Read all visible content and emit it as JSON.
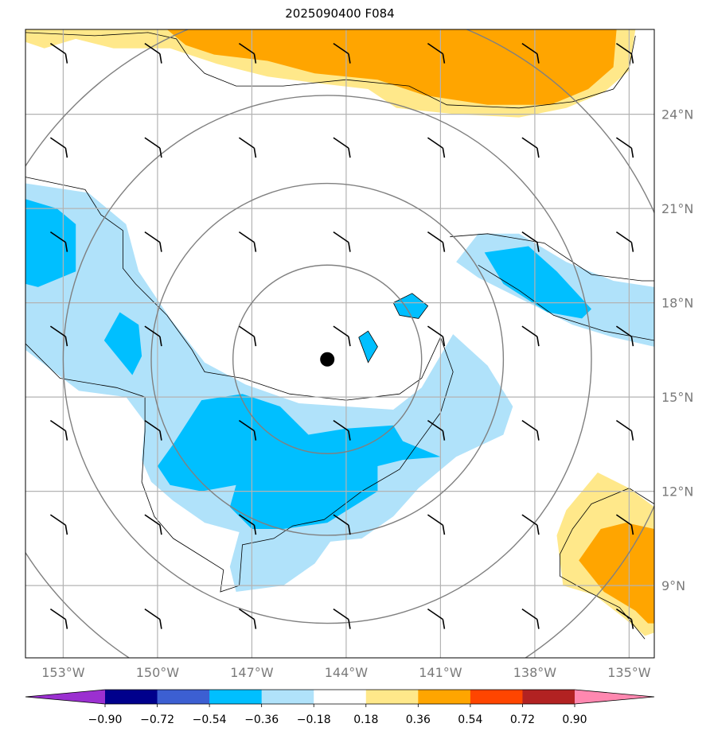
{
  "title": "2025090400 F084",
  "chart_data": {
    "type": "map",
    "title": "2025090400 F084",
    "lon_range": [
      -154.2,
      -134.2
    ],
    "lat_range": [
      6.7,
      26.7
    ],
    "lon_ticks": [
      -153,
      -150,
      -147,
      -144,
      -141,
      -138,
      -135
    ],
    "lon_labels": [
      "153°W",
      "150°W",
      "147°W",
      "144°W",
      "141°W",
      "138°W",
      "135°W"
    ],
    "lat_ticks": [
      9,
      12,
      15,
      18,
      21,
      24
    ],
    "lat_labels": [
      "9°N",
      "12°N",
      "15°N",
      "18°N",
      "21°N",
      "24°N"
    ],
    "center_marker": {
      "lon": -144.6,
      "lat": 16.2
    },
    "range_rings_deg": [
      3,
      5.6,
      8.4,
      11.4
    ],
    "colorbar": {
      "levels": [
        "−0.90",
        "−0.72",
        "−0.54",
        "−0.36",
        "−0.18",
        "0.18",
        "0.36",
        "0.54",
        "0.72",
        "0.90"
      ],
      "colors": [
        "#9b30d0",
        "#00008c",
        "#3c5fd2",
        "#00bfff",
        "#b0e2fa",
        "#ffffff",
        "#ffe88a",
        "#ffa500",
        "#ff4500",
        "#b22222",
        "#ff88b0"
      ]
    },
    "shaded_regions": [
      {
        "name": "light-blue-band",
        "color": "#b0e2fa",
        "lonlat": [
          [
            -154.2,
            21.8
          ],
          [
            -152.2,
            21.5
          ],
          [
            -151,
            20.5
          ],
          [
            -150.6,
            19
          ],
          [
            -149.6,
            17.5
          ],
          [
            -148.5,
            16.1
          ],
          [
            -147.2,
            15.4
          ],
          [
            -145.5,
            14.8
          ],
          [
            -144,
            14.7
          ],
          [
            -142.5,
            14.6
          ],
          [
            -141.6,
            15.3
          ],
          [
            -140.6,
            17
          ],
          [
            -139.5,
            16
          ],
          [
            -138.7,
            14.7
          ],
          [
            -139,
            13.8
          ],
          [
            -140.5,
            13.1
          ],
          [
            -141.7,
            12.1
          ],
          [
            -142.5,
            11.2
          ],
          [
            -143.5,
            10.5
          ],
          [
            -144.5,
            10.4
          ],
          [
            -145,
            9.7
          ],
          [
            -146,
            9
          ],
          [
            -147.5,
            8.8
          ],
          [
            -147.7,
            9.6
          ],
          [
            -147.4,
            10.7
          ],
          [
            -148.5,
            11
          ],
          [
            -149.5,
            11.7
          ],
          [
            -150.2,
            12.3
          ],
          [
            -150.5,
            13
          ],
          [
            -150.4,
            14.2
          ],
          [
            -151,
            15
          ],
          [
            -152.5,
            15.2
          ],
          [
            -154.2,
            16.5
          ]
        ]
      },
      {
        "name": "blue-core-west",
        "color": "#00bfff",
        "lonlat": [
          [
            -154.2,
            21.3
          ],
          [
            -153.2,
            21
          ],
          [
            -152.6,
            20.5
          ],
          [
            -152.6,
            19
          ],
          [
            -153.8,
            18.5
          ],
          [
            -154.2,
            18.6
          ]
        ]
      },
      {
        "name": "blue-core-small",
        "color": "#00bfff",
        "lonlat": [
          [
            -151.2,
            17.7
          ],
          [
            -150.6,
            17.3
          ],
          [
            -150.5,
            16.3
          ],
          [
            -150.8,
            15.7
          ],
          [
            -151.7,
            16.8
          ]
        ]
      },
      {
        "name": "blue-core-south",
        "color": "#00bfff",
        "lonlat": [
          [
            -149.5,
            13.5
          ],
          [
            -148.6,
            14.9
          ],
          [
            -147.3,
            15.1
          ],
          [
            -146.1,
            14.7
          ],
          [
            -145.2,
            13.8
          ],
          [
            -144,
            14
          ],
          [
            -142.5,
            14.1
          ],
          [
            -142.2,
            13.6
          ],
          [
            -141,
            13.1
          ],
          [
            -142.2,
            13
          ],
          [
            -143,
            12.8
          ],
          [
            -143,
            12
          ],
          [
            -143.8,
            11.5
          ],
          [
            -144.6,
            11
          ],
          [
            -146,
            10.8
          ],
          [
            -147,
            10.8
          ],
          [
            -147.7,
            11.5
          ],
          [
            -147.5,
            12.2
          ],
          [
            -148.6,
            12
          ],
          [
            -149.6,
            12.2
          ],
          [
            -150,
            12.8
          ]
        ]
      },
      {
        "name": "light-blue-east",
        "color": "#b0e2fa",
        "lonlat": [
          [
            -140.5,
            19.3
          ],
          [
            -139.8,
            20.2
          ],
          [
            -138.5,
            20.2
          ],
          [
            -137,
            19.3
          ],
          [
            -135.5,
            18.7
          ],
          [
            -134.2,
            18.5
          ],
          [
            -134.2,
            16.6
          ],
          [
            -135.5,
            16.9
          ],
          [
            -136.8,
            17.3
          ],
          [
            -138.2,
            18
          ],
          [
            -139.8,
            18.8
          ]
        ]
      },
      {
        "name": "blue-core-east",
        "color": "#00bfff",
        "lonlat": [
          [
            -139.6,
            19.6
          ],
          [
            -138.2,
            19.8
          ],
          [
            -137.3,
            19
          ],
          [
            -136.2,
            17.8
          ],
          [
            -136.5,
            17.5
          ],
          [
            -137.6,
            17.7
          ],
          [
            -139,
            18.6
          ]
        ]
      },
      {
        "name": "blue-islet-1",
        "color": "#00bfff",
        "lonlat": [
          [
            -142.5,
            18.0
          ],
          [
            -141.9,
            18.3
          ],
          [
            -141.4,
            17.9
          ],
          [
            -141.7,
            17.5
          ],
          [
            -142.3,
            17.6
          ]
        ]
      },
      {
        "name": "blue-islet-2",
        "color": "#00bfff",
        "lonlat": [
          [
            -143.6,
            16.9
          ],
          [
            -143.3,
            17.1
          ],
          [
            -143,
            16.6
          ],
          [
            -143.3,
            16.1
          ]
        ]
      },
      {
        "name": "yellow-north",
        "color": "#ffe88a",
        "lonlat": [
          [
            -154.2,
            26.7
          ],
          [
            -134.8,
            26.7
          ],
          [
            -135,
            25.4
          ],
          [
            -135.8,
            24.7
          ],
          [
            -137,
            24.2
          ],
          [
            -138.5,
            23.9
          ],
          [
            -140.5,
            24
          ],
          [
            -142.4,
            24.2
          ],
          [
            -143.3,
            24.8
          ],
          [
            -145,
            25
          ],
          [
            -146.5,
            25.2
          ],
          [
            -148.1,
            25.6
          ],
          [
            -149.6,
            26.1
          ],
          [
            -151.4,
            26.1
          ],
          [
            -152.6,
            26.4
          ],
          [
            -153.6,
            26.1
          ],
          [
            -154.2,
            26.3
          ]
        ]
      },
      {
        "name": "orange-north",
        "color": "#ffa500",
        "lonlat": [
          [
            -149.7,
            26.7
          ],
          [
            -135.4,
            26.7
          ],
          [
            -135.5,
            25.5
          ],
          [
            -136.3,
            24.8
          ],
          [
            -137.5,
            24.3
          ],
          [
            -139.5,
            24.3
          ],
          [
            -141.5,
            24.6
          ],
          [
            -143,
            25.1
          ],
          [
            -145,
            25.3
          ],
          [
            -146.5,
            25.7
          ],
          [
            -148.2,
            25.9
          ],
          [
            -149.1,
            26.2
          ]
        ]
      },
      {
        "name": "yellow-southeast",
        "color": "#ffe88a",
        "lonlat": [
          [
            -134.2,
            11.5
          ],
          [
            -135,
            12.1
          ],
          [
            -136,
            12.6
          ],
          [
            -137,
            11.4
          ],
          [
            -137.3,
            10.6
          ],
          [
            -137.1,
            9
          ],
          [
            -136.1,
            8.7
          ],
          [
            -135.2,
            8
          ],
          [
            -134.5,
            7.4
          ],
          [
            -134.2,
            7.5
          ]
        ]
      },
      {
        "name": "orange-southeast",
        "color": "#ffa500",
        "lonlat": [
          [
            -134.2,
            10.8
          ],
          [
            -135.1,
            11
          ],
          [
            -135.9,
            10.8
          ],
          [
            -136.6,
            9.8
          ],
          [
            -135.8,
            8.8
          ],
          [
            -134.8,
            8.2
          ],
          [
            -134.4,
            7.8
          ],
          [
            -134.2,
            7.8
          ]
        ]
      }
    ],
    "contour_lines": [
      {
        "name": "contour-west",
        "lonlat": [
          [
            -154.2,
            22
          ],
          [
            -152.3,
            21.6
          ],
          [
            -151.8,
            20.8
          ],
          [
            -151.1,
            20.3
          ],
          [
            -151.1,
            19.1
          ],
          [
            -150.7,
            18.6
          ],
          [
            -149.7,
            17.6
          ],
          [
            -148.9,
            16.5
          ],
          [
            -148.5,
            15.8
          ],
          [
            -147.3,
            15.6
          ],
          [
            -145.8,
            15.1
          ],
          [
            -144,
            14.9
          ],
          [
            -142.3,
            15.1
          ],
          [
            -141.6,
            15.6
          ],
          [
            -141,
            16.9
          ],
          [
            -140.6,
            15.8
          ],
          [
            -141,
            14.5
          ],
          [
            -141.8,
            13.4
          ],
          [
            -142.3,
            12.7
          ],
          [
            -143.5,
            12
          ],
          [
            -144.7,
            11.1
          ],
          [
            -145.7,
            10.9
          ],
          [
            -146.3,
            10.5
          ],
          [
            -147.3,
            10.3
          ],
          [
            -147.4,
            9
          ],
          [
            -148,
            8.8
          ],
          [
            -147.9,
            9.5
          ],
          [
            -149.5,
            10.5
          ],
          [
            -150.1,
            11.2
          ],
          [
            -150.5,
            12.3
          ],
          [
            -150.4,
            13.9
          ],
          [
            -150.4,
            15
          ],
          [
            -151.3,
            15.3
          ],
          [
            -153.1,
            15.6
          ],
          [
            -154.2,
            16.7
          ]
        ]
      },
      {
        "name": "contour-east",
        "lonlat": [
          [
            -140.7,
            20.1
          ],
          [
            -139.5,
            20.2
          ],
          [
            -137.7,
            19.9
          ],
          [
            -136.2,
            18.9
          ],
          [
            -134.6,
            18.7
          ],
          [
            -134.2,
            18.7
          ],
          [
            -134.2,
            16.8
          ],
          [
            -135.8,
            17.1
          ],
          [
            -137.4,
            17.6
          ],
          [
            -138.5,
            18.4
          ],
          [
            -139.8,
            19.2
          ]
        ]
      },
      {
        "name": "contour-north",
        "lonlat": [
          [
            -154.2,
            26.6
          ],
          [
            -152,
            26.5
          ],
          [
            -150.3,
            26.6
          ],
          [
            -149.4,
            26.4
          ],
          [
            -149,
            25.8
          ],
          [
            -148.5,
            25.3
          ],
          [
            -147.5,
            24.9
          ],
          [
            -146,
            24.9
          ],
          [
            -144,
            25.1
          ],
          [
            -142,
            24.9
          ],
          [
            -140.8,
            24.3
          ],
          [
            -138.5,
            24.2
          ],
          [
            -136.8,
            24.4
          ],
          [
            -135.5,
            24.8
          ],
          [
            -135,
            25.5
          ],
          [
            -134.8,
            26.5
          ]
        ]
      },
      {
        "name": "contour-southeast",
        "lonlat": [
          [
            -134.2,
            11.6
          ],
          [
            -135,
            12.1
          ],
          [
            -136.2,
            11.6
          ],
          [
            -136.8,
            10.8
          ],
          [
            -137.2,
            10
          ],
          [
            -137.2,
            9.3
          ],
          [
            -136.3,
            8.8
          ],
          [
            -135.3,
            8.3
          ],
          [
            -134.5,
            7.3
          ]
        ]
      },
      {
        "name": "contour-islet-1",
        "lonlat": [
          [
            -142.5,
            18.0
          ],
          [
            -141.9,
            18.3
          ],
          [
            -141.4,
            17.9
          ],
          [
            -141.7,
            17.5
          ],
          [
            -142.3,
            17.6
          ],
          [
            -142.5,
            18.0
          ]
        ]
      },
      {
        "name": "contour-islet-2",
        "lonlat": [
          [
            -143.6,
            16.9
          ],
          [
            -143.3,
            17.1
          ],
          [
            -143,
            16.6
          ],
          [
            -143.3,
            16.1
          ],
          [
            -143.6,
            16.9
          ]
        ]
      }
    ],
    "wind_barb_grid": {
      "lons": [
        -153,
        -150,
        -147,
        -144,
        -141,
        -138,
        -135
      ],
      "lats": [
        8,
        11,
        14,
        17,
        20,
        23,
        26
      ]
    }
  }
}
